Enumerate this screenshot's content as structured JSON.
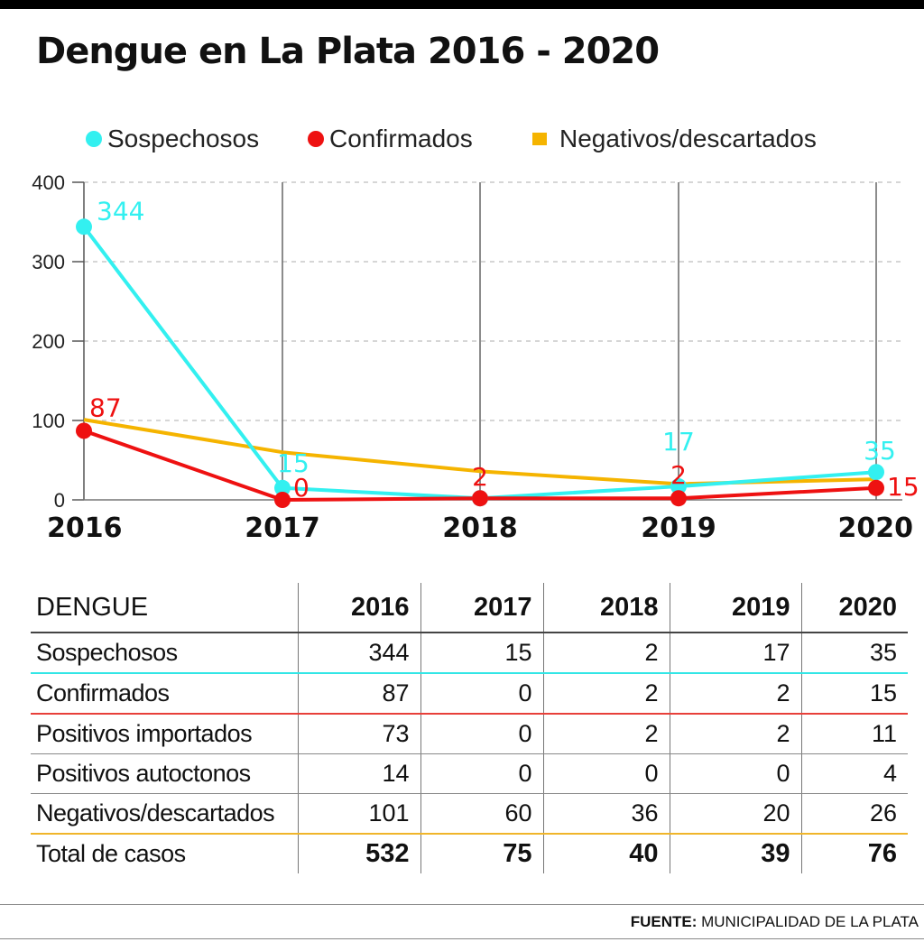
{
  "title": "Dengue en La Plata 2016 - 2020",
  "colors": {
    "sospechosos": "#33f0f0",
    "confirmados": "#ee1111",
    "negativos": "#f5b400"
  },
  "legend": [
    {
      "label": "Sospechosos",
      "color": "#33f0f0",
      "marker": "circle"
    },
    {
      "label": "Confirmados",
      "color": "#ee1111",
      "marker": "circle"
    },
    {
      "label": "Negativos/descartados",
      "color": "#f5b400",
      "marker": "square"
    }
  ],
  "chart_data": {
    "type": "line",
    "title": "Dengue en La Plata 2016 - 2020",
    "x": [
      "2016",
      "2017",
      "2018",
      "2019",
      "2020"
    ],
    "ylim": [
      0,
      400
    ],
    "yticks": [
      0,
      100,
      200,
      300,
      400
    ],
    "grid": "horizontal dashed",
    "legend_position": "top",
    "series": [
      {
        "name": "Sospechosos",
        "color": "#33f0f0",
        "values": [
          344,
          15,
          2,
          17,
          35
        ],
        "labels": [
          "344",
          "15",
          "",
          "17",
          "35"
        ],
        "markers": true
      },
      {
        "name": "Confirmados",
        "color": "#ee1111",
        "values": [
          87,
          0,
          2,
          2,
          15
        ],
        "labels": [
          "87",
          "0",
          "2",
          "2",
          "15"
        ],
        "markers": true
      },
      {
        "name": "Negativos/descartados",
        "color": "#f5b400",
        "values": [
          101,
          60,
          36,
          20,
          26
        ],
        "labels": [
          "",
          "",
          "",
          "",
          ""
        ],
        "markers": false
      }
    ]
  },
  "table": {
    "header": [
      "DENGUE",
      "2016",
      "2017",
      "2018",
      "2019",
      "2020"
    ],
    "rows": [
      {
        "label": "Sospechosos",
        "values": [
          "344",
          "15",
          "2",
          "17",
          "35"
        ]
      },
      {
        "label": "Confirmados",
        "values": [
          "87",
          "0",
          "2",
          "2",
          "15"
        ]
      },
      {
        "label": "Positivos importados",
        "values": [
          "73",
          "0",
          "2",
          "2",
          "11"
        ]
      },
      {
        "label": "Positivos autoctonos",
        "values": [
          "14",
          "0",
          "0",
          "0",
          "4"
        ]
      },
      {
        "label": "Negativos/descartados",
        "values": [
          "101",
          "60",
          "36",
          "20",
          "26"
        ]
      },
      {
        "label": "Total de casos",
        "values": [
          "532",
          "75",
          "40",
          "39",
          "76"
        ]
      }
    ]
  },
  "source": {
    "prefix": "FUENTE:",
    "text": "MUNICIPALIDAD DE LA PLATA"
  }
}
